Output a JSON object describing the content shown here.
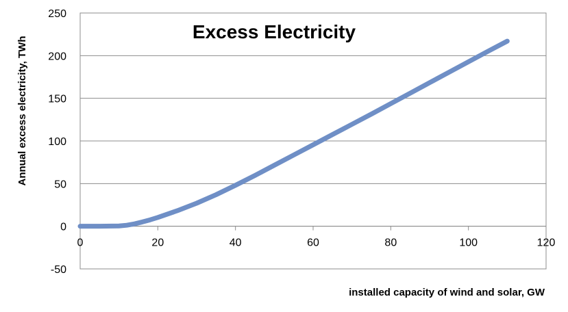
{
  "chart_data": {
    "type": "line",
    "title": "Excess Electricity",
    "xlabel": "installed capacity of wind and solar, GW",
    "ylabel": "Annual excess electricity, TWh",
    "xlim": [
      0,
      120
    ],
    "ylim": [
      -50,
      250
    ],
    "xticks": [
      0,
      20,
      40,
      60,
      80,
      100,
      120
    ],
    "yticks": [
      -50,
      0,
      50,
      100,
      150,
      200,
      250
    ],
    "grid": true,
    "series_color": "#6f8fc6",
    "series": [
      {
        "x": [
          0,
          5,
          10,
          12,
          14,
          16,
          18,
          20,
          25,
          30,
          35,
          40,
          45,
          50,
          55,
          60,
          65,
          70,
          75,
          80,
          85,
          90,
          95,
          100,
          105,
          110
        ],
        "y": [
          0,
          0,
          0.3,
          1.2,
          2.8,
          5,
          7.5,
          10.3,
          18.2,
          27,
          37,
          48,
          59.5,
          71.5,
          83.5,
          95.5,
          107.5,
          119.5,
          131.5,
          143.8,
          156,
          168.3,
          180.6,
          192.8,
          205,
          217
        ]
      }
    ]
  }
}
